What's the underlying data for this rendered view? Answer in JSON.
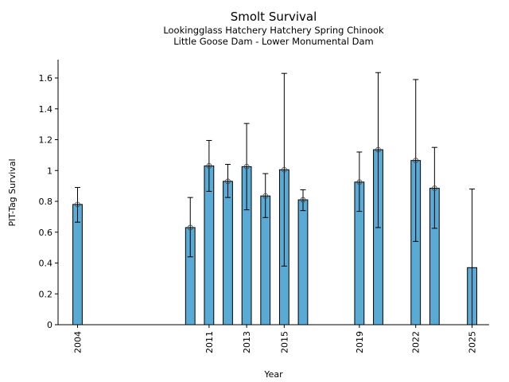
{
  "chart_data": {
    "type": "bar",
    "title": "Smolt Survival",
    "subtitles": [
      "Lookingglass Hatchery Hatchery Spring Chinook",
      "Little Goose Dam - Lower Monumental Dam"
    ],
    "xlabel": "Year",
    "ylabel": "PIT-Tag Survival",
    "ylim": [
      0,
      1.72
    ],
    "xlim": [
      2002.9,
      2026
    ],
    "yticks": [
      "0",
      "0.2",
      "0.4",
      "0.6",
      "0.8",
      "1",
      "1.2",
      "1.4",
      "1.6"
    ],
    "ytick_values": [
      0,
      0.2,
      0.4,
      0.6,
      0.8,
      1.0,
      1.2,
      1.4,
      1.6
    ],
    "xticks": [
      "2004",
      "2011",
      "2013",
      "2015",
      "2019",
      "2022",
      "2025"
    ],
    "xtick_values": [
      2004,
      2011,
      2013,
      2015,
      2019,
      2022,
      2025
    ],
    "bar_color": "#5aaad6",
    "grid": false,
    "series": [
      {
        "name": "PIT-Tag Survival",
        "points": [
          {
            "year": 2004,
            "value": 0.78,
            "lower": 0.665,
            "upper": 0.89,
            "marker": true
          },
          {
            "year": 2010,
            "value": 0.63,
            "lower": 0.44,
            "upper": 0.825,
            "marker": true
          },
          {
            "year": 2011,
            "value": 1.03,
            "lower": 0.865,
            "upper": 1.195,
            "marker": true
          },
          {
            "year": 2012,
            "value": 0.93,
            "lower": 0.825,
            "upper": 1.04,
            "marker": true
          },
          {
            "year": 2013,
            "value": 1.025,
            "lower": 0.745,
            "upper": 1.305,
            "marker": true
          },
          {
            "year": 2014,
            "value": 0.835,
            "lower": 0.695,
            "upper": 0.98,
            "marker": true
          },
          {
            "year": 2015,
            "value": 1.005,
            "lower": 0.38,
            "upper": 1.63,
            "marker": true
          },
          {
            "year": 2016,
            "value": 0.81,
            "lower": 0.74,
            "upper": 0.875,
            "marker": true
          },
          {
            "year": 2019,
            "value": 0.925,
            "lower": 0.735,
            "upper": 1.12,
            "marker": true
          },
          {
            "year": 2020,
            "value": 1.135,
            "lower": 0.63,
            "upper": 1.635,
            "marker": true
          },
          {
            "year": 2022,
            "value": 1.065,
            "lower": 0.54,
            "upper": 1.59,
            "marker": true
          },
          {
            "year": 2023,
            "value": 0.885,
            "lower": 0.625,
            "upper": 1.15,
            "marker": true
          },
          {
            "year": 2025,
            "value": 0.37,
            "lower": null,
            "upper": 0.88,
            "marker": false
          }
        ]
      }
    ]
  }
}
